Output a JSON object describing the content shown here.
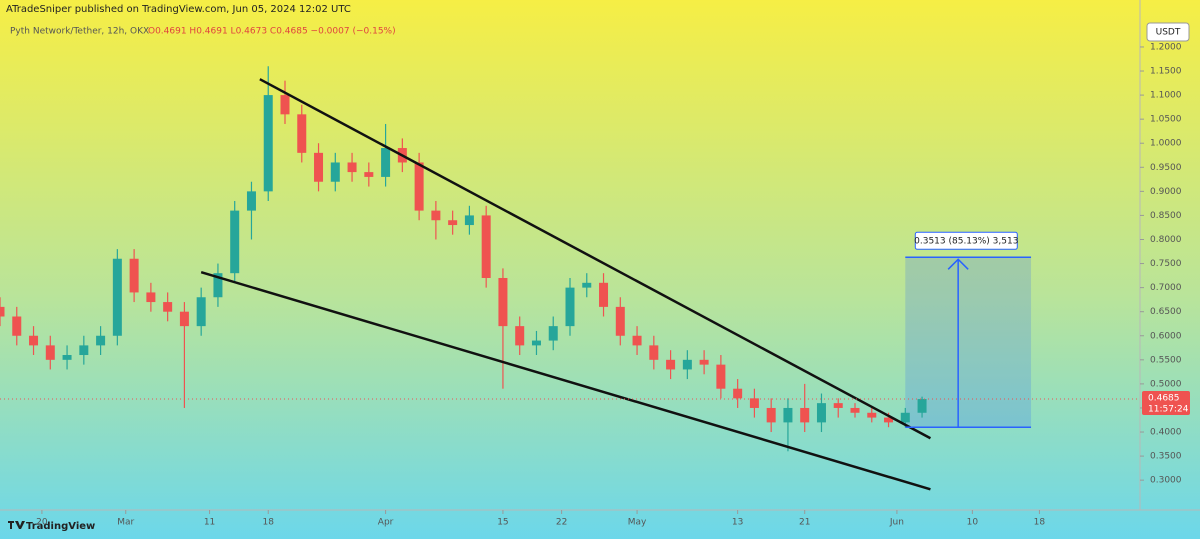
{
  "header": {
    "publisher": "ATradeSniper published on TradingView.com, Jun 05, 2024 12:02 UTC",
    "symbol": "Pyth Network/Tether, 12h, OKX",
    "ohlc": "O0.4691 H0.4691 L0.4673 C0.4685 −0.0007 (−0.15%)",
    "currency": "USDT",
    "brand": "TradingView"
  },
  "chart_data": {
    "type": "candlestick",
    "x": [
      "2024-02-15",
      "2024-02-17",
      "2024-02-19",
      "2024-02-21",
      "2024-02-23",
      "2024-02-25",
      "2024-02-27",
      "2024-02-29",
      "2024-03-02",
      "2024-03-04",
      "2024-03-06",
      "2024-03-08",
      "2024-03-10",
      "2024-03-12",
      "2024-03-14",
      "2024-03-16",
      "2024-03-18",
      "2024-03-20",
      "2024-03-22",
      "2024-03-24",
      "2024-03-26",
      "2024-03-28",
      "2024-03-30",
      "2024-04-01",
      "2024-04-03",
      "2024-04-05",
      "2024-04-07",
      "2024-04-09",
      "2024-04-11",
      "2024-04-13",
      "2024-04-15",
      "2024-04-17",
      "2024-04-19",
      "2024-04-21",
      "2024-04-23",
      "2024-04-25",
      "2024-04-27",
      "2024-04-29",
      "2024-05-01",
      "2024-05-03",
      "2024-05-05",
      "2024-05-07",
      "2024-05-09",
      "2024-05-11",
      "2024-05-13",
      "2024-05-15",
      "2024-05-17",
      "2024-05-19",
      "2024-05-21",
      "2024-05-23",
      "2024-05-25",
      "2024-05-27",
      "2024-05-29",
      "2024-05-31",
      "2024-06-02",
      "2024-06-04"
    ],
    "open": [
      0.66,
      0.64,
      0.6,
      0.58,
      0.55,
      0.56,
      0.58,
      0.6,
      0.76,
      0.69,
      0.67,
      0.65,
      0.62,
      0.68,
      0.73,
      0.86,
      0.9,
      1.1,
      1.06,
      0.98,
      0.92,
      0.96,
      0.94,
      0.93,
      0.99,
      0.96,
      0.86,
      0.84,
      0.83,
      0.85,
      0.72,
      0.62,
      0.58,
      0.59,
      0.62,
      0.7,
      0.71,
      0.66,
      0.6,
      0.58,
      0.55,
      0.53,
      0.55,
      0.54,
      0.49,
      0.47,
      0.45,
      0.42,
      0.45,
      0.42,
      0.46,
      0.45,
      0.44,
      0.43,
      0.42,
      0.44
    ],
    "high": [
      0.68,
      0.66,
      0.62,
      0.6,
      0.58,
      0.6,
      0.62,
      0.78,
      0.78,
      0.71,
      0.69,
      0.67,
      0.7,
      0.75,
      0.88,
      0.92,
      1.16,
      1.13,
      1.08,
      1.0,
      0.98,
      0.98,
      0.96,
      1.04,
      1.01,
      0.98,
      0.88,
      0.86,
      0.87,
      0.87,
      0.74,
      0.64,
      0.61,
      0.64,
      0.72,
      0.73,
      0.73,
      0.68,
      0.62,
      0.6,
      0.57,
      0.57,
      0.57,
      0.56,
      0.51,
      0.49,
      0.47,
      0.47,
      0.5,
      0.48,
      0.47,
      0.46,
      0.45,
      0.44,
      0.45,
      0.4735
    ],
    "low": [
      0.62,
      0.58,
      0.56,
      0.53,
      0.53,
      0.54,
      0.56,
      0.58,
      0.67,
      0.65,
      0.63,
      0.45,
      0.6,
      0.66,
      0.71,
      0.8,
      0.88,
      1.04,
      0.96,
      0.9,
      0.9,
      0.92,
      0.91,
      0.91,
      0.94,
      0.84,
      0.8,
      0.81,
      0.81,
      0.7,
      0.49,
      0.56,
      0.56,
      0.57,
      0.6,
      0.68,
      0.64,
      0.58,
      0.56,
      0.53,
      0.51,
      0.51,
      0.52,
      0.47,
      0.45,
      0.43,
      0.4,
      0.36,
      0.4,
      0.4,
      0.43,
      0.43,
      0.42,
      0.41,
      0.41,
      0.43
    ],
    "close": [
      0.64,
      0.6,
      0.58,
      0.55,
      0.56,
      0.58,
      0.6,
      0.76,
      0.69,
      0.67,
      0.65,
      0.62,
      0.68,
      0.73,
      0.86,
      0.9,
      1.1,
      1.06,
      0.98,
      0.92,
      0.96,
      0.94,
      0.93,
      0.99,
      0.96,
      0.86,
      0.84,
      0.83,
      0.85,
      0.72,
      0.62,
      0.58,
      0.59,
      0.62,
      0.7,
      0.71,
      0.66,
      0.6,
      0.58,
      0.55,
      0.53,
      0.55,
      0.54,
      0.49,
      0.47,
      0.45,
      0.42,
      0.45,
      0.42,
      0.46,
      0.45,
      0.44,
      0.43,
      0.42,
      0.44,
      0.4685
    ],
    "up_color": "#26a69a",
    "down_color": "#ef5350",
    "xlim": [
      "2024-02-15",
      "2024-06-30"
    ],
    "xticks": [
      {
        "value": "2024-02-20",
        "label": "20"
      },
      {
        "value": "2024-03-01",
        "label": "Mar"
      },
      {
        "value": "2024-03-11",
        "label": "11"
      },
      {
        "value": "2024-03-18",
        "label": "18"
      },
      {
        "value": "2024-04-01",
        "label": "Apr"
      },
      {
        "value": "2024-04-15",
        "label": "15"
      },
      {
        "value": "2024-04-22",
        "label": "22"
      },
      {
        "value": "2024-05-01",
        "label": "May"
      },
      {
        "value": "2024-05-13",
        "label": "13"
      },
      {
        "value": "2024-05-21",
        "label": "21"
      },
      {
        "value": "2024-06-01",
        "label": "Jun"
      },
      {
        "value": "2024-06-10",
        "label": "10"
      },
      {
        "value": "2024-06-18",
        "label": "18"
      }
    ],
    "ylim": [
      0.238,
      1.256
    ],
    "yticks": [
      {
        "value": 0.3,
        "label": "0.3000"
      },
      {
        "value": 0.35,
        "label": "0.3500"
      },
      {
        "value": 0.4,
        "label": "0.4000"
      },
      {
        "value": 0.45,
        "label": "0.4500"
      },
      {
        "value": 0.5,
        "label": "0.5000"
      },
      {
        "value": 0.55,
        "label": "0.5500"
      },
      {
        "value": 0.6,
        "label": "0.6000"
      },
      {
        "value": 0.65,
        "label": "0.6500"
      },
      {
        "value": 0.7,
        "label": "0.7000"
      },
      {
        "value": 0.75,
        "label": "0.7500"
      },
      {
        "value": 0.8,
        "label": "0.8000"
      },
      {
        "value": 0.85,
        "label": "0.8500"
      },
      {
        "value": 0.9,
        "label": "0.9000"
      },
      {
        "value": 0.95,
        "label": "0.9500"
      },
      {
        "value": 1.0,
        "label": "1.0000"
      },
      {
        "value": 1.05,
        "label": "1.0500"
      },
      {
        "value": 1.1,
        "label": "1.1000"
      },
      {
        "value": 1.15,
        "label": "1.1500"
      },
      {
        "value": 1.2,
        "label": "1.2000"
      }
    ],
    "last_price": 0.4685,
    "countdown": "11:57:24",
    "trendlines": [
      {
        "x": [
          "2024-03-17",
          "2024-06-05"
        ],
        "y": [
          1.133,
          0.387
        ]
      },
      {
        "x": [
          "2024-03-10",
          "2024-06-05"
        ],
        "y": [
          0.732,
          0.281
        ]
      }
    ],
    "measure": {
      "x": [
        "2024-06-02",
        "2024-06-17"
      ],
      "y": [
        0.41,
        0.763
      ],
      "label": "0.3513 (85.13%) 3,513"
    }
  }
}
